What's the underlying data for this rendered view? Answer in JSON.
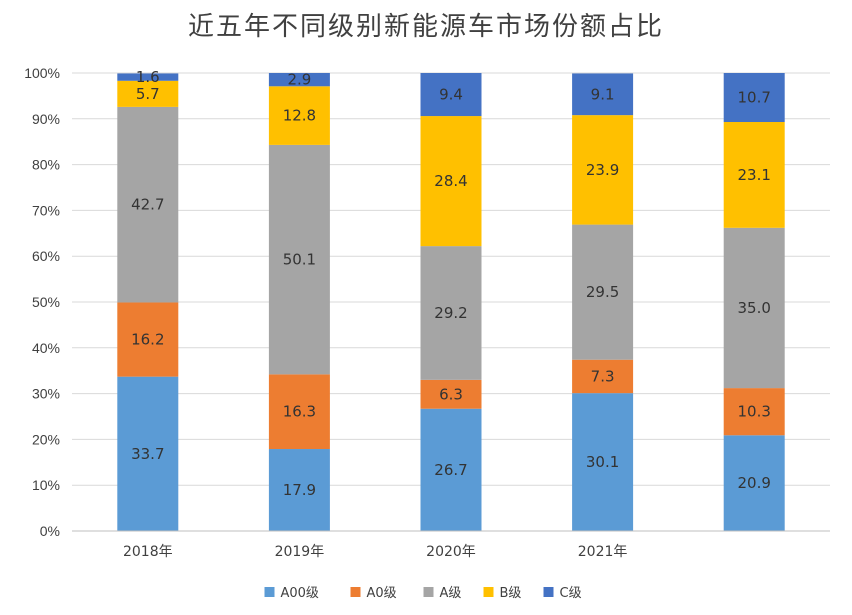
{
  "chart_data": {
    "type": "bar",
    "stacked": true,
    "title": "近五年不同级别新能源车市场份额占比",
    "categories": [
      "2018年",
      "2019年",
      "2020年",
      "2021年",
      ""
    ],
    "y_ticks": [
      "0%",
      "10%",
      "20%",
      "30%",
      "40%",
      "50%",
      "60%",
      "70%",
      "80%",
      "90%",
      "100%"
    ],
    "ylim": [
      0,
      100
    ],
    "grid": true,
    "legend_position": "bottom",
    "series": [
      {
        "name": "A00级",
        "color": "#5B9BD5",
        "values": [
          33.7,
          17.9,
          26.7,
          30.1,
          20.9
        ],
        "labels": [
          "33.7",
          "17.9",
          "26.7",
          "30.1",
          "20.9"
        ]
      },
      {
        "name": "A0级",
        "color": "#ED7D31",
        "values": [
          16.2,
          16.3,
          6.3,
          7.3,
          10.3
        ],
        "labels": [
          "16.2",
          "16.3",
          "6.3",
          "7.3",
          "10.3"
        ]
      },
      {
        "name": "A级",
        "color": "#A5A5A5",
        "values": [
          42.7,
          50.1,
          29.2,
          29.5,
          35.0
        ],
        "labels": [
          "42.7",
          "50.1",
          "29.2",
          "29.5",
          "35.0"
        ]
      },
      {
        "name": "B级",
        "color": "#FFC000",
        "values": [
          5.7,
          12.8,
          28.4,
          23.9,
          23.1
        ],
        "labels": [
          "5.7",
          "12.8",
          "28.4",
          "23.9",
          "23.1"
        ]
      },
      {
        "name": "C级",
        "color": "#4472C4",
        "values": [
          1.6,
          2.9,
          9.4,
          9.1,
          10.7
        ],
        "labels": [
          "1.6",
          "2.9",
          "9.4",
          "9.1",
          "10.7"
        ]
      }
    ]
  }
}
